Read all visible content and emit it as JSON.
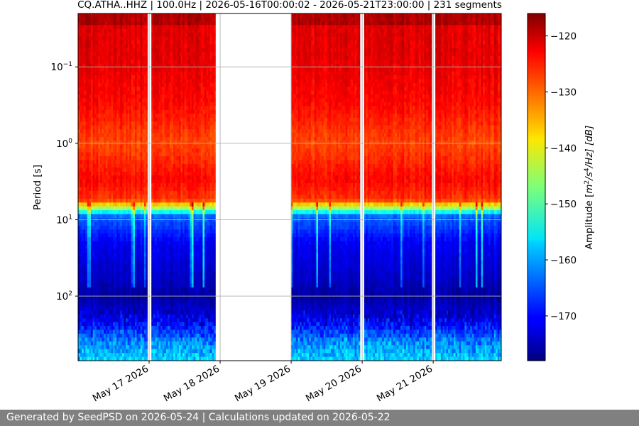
{
  "chart_data": {
    "type": "heatmap",
    "title": "CQ.ATHA..HHZ | 100.0Hz | 2026-05-16T00:00:02 - 2026-05-21T23:00:00 | 231 segments",
    "ylabel": "Period [s]",
    "y_scale": "log",
    "y_inverted": true,
    "ylim": [
      0.02,
      700
    ],
    "xlim": [
      "2026-05-16T00:00:02",
      "2026-05-21T23:00:00"
    ],
    "x_ticks": [
      {
        "date": "2026-05-17",
        "label": "May 17 2026"
      },
      {
        "date": "2026-05-18",
        "label": "May 18 2026"
      },
      {
        "date": "2026-05-19",
        "label": "May 19 2026"
      },
      {
        "date": "2026-05-20",
        "label": "May 20 2026"
      },
      {
        "date": "2026-05-21",
        "label": "May 21 2026"
      }
    ],
    "y_ticks": [
      {
        "value": 0.1,
        "base": "10",
        "exp": "−1"
      },
      {
        "value": 1,
        "base": "10",
        "exp": "0"
      },
      {
        "value": 10,
        "base": "10",
        "exp": "1"
      },
      {
        "value": 100,
        "base": "10",
        "exp": "2"
      }
    ],
    "grid": true,
    "colormap": "jet",
    "colorbar": {
      "label_main": "Amplitude [",
      "label_m": "m",
      "label_m_sup": "2",
      "label_mid": "/s",
      "label_s_sup": "4",
      "label_tail": "/Hz] [dB]",
      "range": [
        -178,
        -116
      ],
      "ticks": [
        -120,
        -130,
        -140,
        -150,
        -160,
        -170
      ]
    },
    "data_gaps": [
      [
        "2026-05-16T23:30:00",
        "2026-05-17T00:30:00"
      ],
      [
        "2026-05-17T22:30:00",
        "2026-05-19T00:00:00"
      ],
      [
        "2026-05-19T23:20:00",
        "2026-05-20T00:40:00"
      ],
      [
        "2026-05-20T23:35:00",
        "2026-05-21T00:25:00"
      ]
    ],
    "typical_profile_db": [
      {
        "period": 0.02,
        "db": -119
      },
      {
        "period": 0.028,
        "db": -119
      },
      {
        "period": 0.03,
        "db": -122
      },
      {
        "period": 0.07,
        "db": -122
      },
      {
        "period": 0.3,
        "db": -124
      },
      {
        "period": 1,
        "db": -128
      },
      {
        "period": 3,
        "db": -124
      },
      {
        "period": 5.5,
        "db": -127
      },
      {
        "period": 6.5,
        "db": -138
      },
      {
        "period": 7.5,
        "db": -150
      },
      {
        "period": 9,
        "db": -164
      },
      {
        "period": 20,
        "db": -171
      },
      {
        "period": 60,
        "db": -174
      },
      {
        "period": 100,
        "db": -176
      },
      {
        "period": 200,
        "db": -172
      },
      {
        "period": 400,
        "db": -162
      },
      {
        "period": 700,
        "db": -157
      }
    ]
  },
  "footer": {
    "text": "Generated by SeedPSD on 2026-05-24 | Calculations updated on 2026-05-22"
  }
}
